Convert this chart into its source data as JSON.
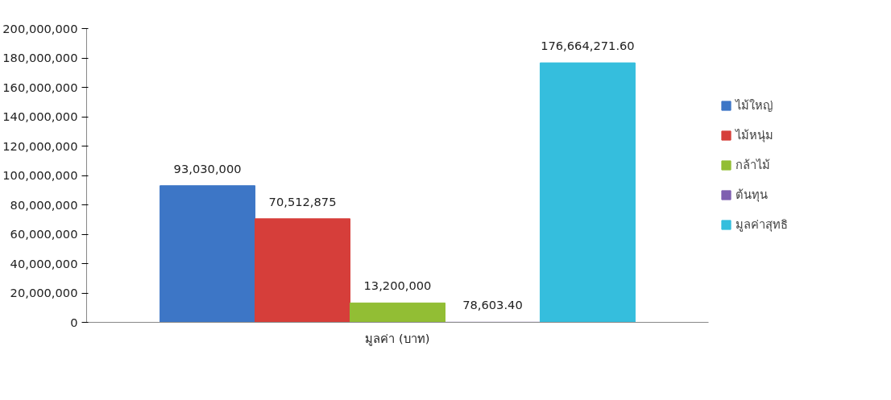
{
  "chart_data": {
    "type": "bar",
    "categories": [
      "มูลค่า (บาท)"
    ],
    "series": [
      {
        "name": "ไม้ใหญ่",
        "color": "#3d76c6",
        "values": [
          93030000
        ],
        "value_labels": [
          "93,030,000"
        ]
      },
      {
        "name": "ไม้หนุ่ม",
        "color": "#d63e3a",
        "values": [
          70512875
        ],
        "value_labels": [
          "70,512,875"
        ]
      },
      {
        "name": "กล้าไม้",
        "color": "#92be34",
        "values": [
          13200000
        ],
        "value_labels": [
          "13,200,000"
        ]
      },
      {
        "name": "ต้นทุน",
        "color": "#7f5fb0",
        "values": [
          78603.4
        ],
        "value_labels": [
          "78,603.40"
        ]
      },
      {
        "name": "มูลค่าสุทธิ",
        "color": "#35bedd",
        "values": [
          176664271.6
        ],
        "value_labels": [
          "176,664,271.60"
        ]
      }
    ],
    "ylim": [
      0,
      200000000
    ],
    "yticks": [
      0,
      {
        "value": 20000000,
        "label": "20,000,000"
      },
      {
        "value": 40000000,
        "label": "40,000,000"
      },
      {
        "value": 60000000,
        "label": "60,000,000"
      },
      {
        "value": 80000000,
        "label": "80,000,000"
      },
      {
        "value": 100000000,
        "label": "100,000,000"
      },
      {
        "value": 120000000,
        "label": "120,000,000"
      },
      {
        "value": 140000000,
        "label": "140,000,000"
      },
      {
        "value": 160000000,
        "label": "160,000,000"
      },
      {
        "value": 180000000,
        "label": "180,000,000"
      },
      {
        "value": 200000000,
        "label": "200,000,000"
      }
    ],
    "grid": false,
    "legend": "right"
  }
}
